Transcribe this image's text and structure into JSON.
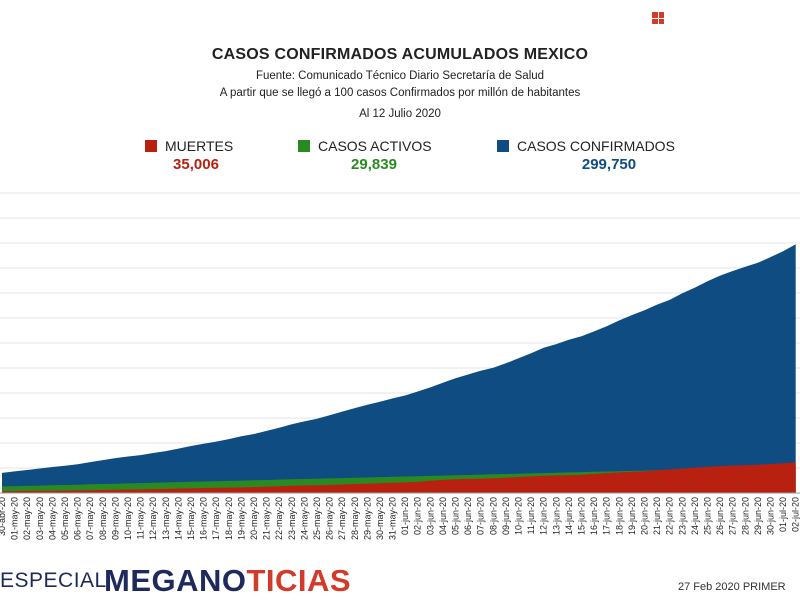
{
  "header": {
    "title": "CASOS CONFIRMADOS ACUMULADOS MEXICO",
    "source": "Fuente: Comunicado Técnico Diario Secretaría de Salud",
    "criteria": "A partir que se llegó a 100 casos Confirmados por millón de habitantes",
    "date": "Al 12 Julio 2020"
  },
  "legend": [
    {
      "label": "MUERTES",
      "value": "35,006",
      "color": "#b82010"
    },
    {
      "label": "CASOS ACTIVOS",
      "value": "29,839",
      "color": "#2a8a22"
    },
    {
      "label": "CASOS CONFIRMADOS",
      "value": "299,750",
      "color": "#0f4c81"
    }
  ],
  "footer": {
    "especial": "ESPECIAL",
    "brand_main": "MEGANO",
    "brand_accent": "TICIAS",
    "ticker": "27 Feb 2020 PRIMER"
  },
  "chart_data": {
    "type": "area",
    "title": "CASOS CONFIRMADOS ACUMULADOS MEXICO",
    "x": [
      "30-abr-20",
      "01-may-20",
      "02-may-20",
      "03-may-20",
      "04-may-20",
      "05-may-20",
      "06-may-20",
      "07-may-20",
      "08-may-20",
      "09-may-20",
      "10-may-20",
      "11-may-20",
      "12-may-20",
      "13-may-20",
      "14-may-20",
      "15-may-20",
      "16-may-20",
      "17-may-20",
      "18-may-20",
      "19-may-20",
      "20-may-20",
      "21-may-20",
      "22-may-20",
      "23-may-20",
      "24-may-20",
      "25-may-20",
      "26-may-20",
      "27-may-20",
      "28-may-20",
      "29-may-20",
      "30-may-20",
      "31-may-20",
      "01-jun-20",
      "02-jun-20",
      "03-jun-20",
      "04-jun-20",
      "05-jun-20",
      "06-jun-20",
      "07-jun-20",
      "08-jun-20",
      "09-jun-20",
      "10-jun-20",
      "11-jun-20",
      "12-jun-20",
      "13-jun-20",
      "14-jun-20",
      "15-jun-20",
      "16-jun-20",
      "17-jun-20",
      "18-jun-20",
      "19-jun-20",
      "20-jun-20",
      "21-jun-20",
      "22-jun-20",
      "23-jun-20",
      "24-jun-20",
      "25-jun-20",
      "26-jun-20",
      "27-jun-20",
      "28-jun-20",
      "29-jun-20",
      "30-jun-20",
      "01-jul-20",
      "02-jul-20"
    ],
    "series": [
      {
        "name": "MUERTES",
        "color": "#b82010",
        "values": [
          1732,
          1859,
          1972,
          2061,
          2154,
          2271,
          2507,
          2704,
          2961,
          3160,
          3353,
          3465,
          3573,
          3926,
          4220,
          4477,
          4767,
          5045,
          5177,
          5332,
          5666,
          6090,
          6510,
          6989,
          7179,
          7394,
          7633,
          8134,
          8597,
          9044,
          9415,
          9779,
          10167,
          10637,
          11729,
          12545,
          13170,
          13511,
          13699,
          14053,
          14649,
          15357,
          15944,
          16448,
          16872,
          17141,
          17580,
          18310,
          19080,
          19747,
          20394,
          20781,
          21825,
          22584,
          23377,
          24324,
          25060,
          25779,
          26381,
          26648,
          27121,
          27769,
          28510,
          29189
        ]
      },
      {
        "name": "CASOS ACTIVOS",
        "color": "#2a8a22",
        "values": [
          6200,
          6500,
          6800,
          7100,
          7400,
          7700,
          8000,
          8300,
          8600,
          8900,
          9200,
          9500,
          9800,
          10100,
          10400,
          10700,
          11000,
          11300,
          11600,
          11900,
          12200,
          12500,
          12800,
          13100,
          13400,
          13700,
          14000,
          14300,
          14600,
          14900,
          15200,
          15500,
          15800,
          16100,
          16400,
          16700,
          17000,
          17300,
          17600,
          17900,
          18200,
          18500,
          18800,
          19100,
          19400,
          19700,
          20000,
          20300,
          20600,
          20900,
          21200,
          21500,
          21800,
          22100,
          22400,
          22700,
          23000,
          23300,
          23600,
          23900,
          24200,
          24500,
          24800,
          25100
        ]
      },
      {
        "name": "CASOS CONFIRMADOS",
        "color": "#0f4c81",
        "values": [
          19224,
          20739,
          22088,
          23471,
          24905,
          26025,
          27634,
          29616,
          31522,
          33460,
          35022,
          36327,
          38324,
          40186,
          42595,
          45032,
          47144,
          49219,
          51633,
          54346,
          56594,
          59567,
          62527,
          65856,
          68620,
          71105,
          74560,
          78023,
          81400,
          84627,
          87512,
          90664,
          93435,
          97326,
          101238,
          105680,
          110026,
          113619,
          117103,
          120102,
          124301,
          129184,
          133974,
          139196,
          142690,
          146837,
          150264,
          154863,
          159793,
          165455,
          170485,
          175202,
          180545,
          185122,
          191410,
          196847,
          202951,
          208392,
          212802,
          216852,
          220657,
          226089,
          231770,
          238511
        ]
      }
    ],
    "ylim": [
      0,
      300000
    ],
    "grid": true
  }
}
